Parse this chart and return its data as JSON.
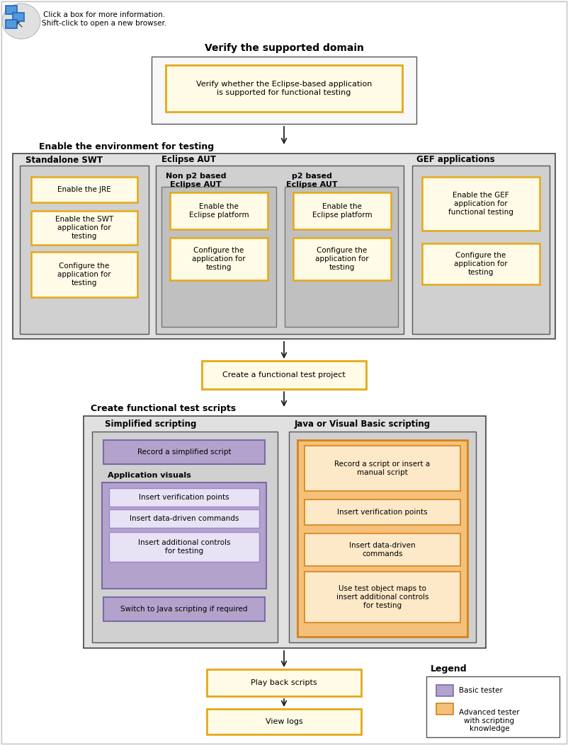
{
  "bg_color": "#f5f5f5",
  "yellow_box_bg": "#fffbe6",
  "yellow_box_border": "#e6a817",
  "purple_box_bg": "#b3a3cc",
  "purple_box_border": "#7a6aaa",
  "purple_inner_bg": "#e8e2f5",
  "orange_box_bg": "#f5c07a",
  "orange_box_border": "#d4831a",
  "orange_inner_bg": "#fde8c8",
  "gray1": "#e0e0e0",
  "gray2": "#d0d0d0",
  "gray3": "#c0c0c0",
  "white": "#ffffff",
  "section_border": "#444444",
  "sub_border": "#666666",
  "inner_border": "#888888",
  "top_note": "Click a box for more information.\nShift-click to open a new browser.",
  "section1_title": "Verify the supported domain",
  "verify_box_text": "Verify whether the Eclipse-based application\nis supported for functional testing",
  "section2_title": "Enable the environment for testing",
  "swt_title": "Standalone SWT",
  "swt_boxes": [
    "Enable the JRE",
    "Enable the SWT\napplication for\ntesting",
    "Configure the\napplication for\ntesting"
  ],
  "eclipse_aut_title": "Eclipse AUT",
  "non_p2_title": "Non p2 based\nEclipse AUT",
  "p2_title": "p2 based\nEclipse AUT",
  "eclipse_boxes_nonp2": [
    "Enable the\nEclipse platform",
    "Configure the\napplication for\ntesting"
  ],
  "eclipse_boxes_p2": [
    "Enable the\nEclipse platform",
    "Configure the\napplication for\ntesting"
  ],
  "gef_title": "GEF applications",
  "gef_boxes": [
    "Enable the GEF\napplication for\nfunctional testing",
    "Configure the\napplication for\ntesting"
  ],
  "functional_project_box": "Create a functional test project",
  "section3_title": "Create functional test scripts",
  "simplified_title": "Simplified scripting",
  "simplified_box1": "Record a simplified script",
  "app_visuals_title": "Application visuals",
  "app_visuals_boxes": [
    "Insert verification points",
    "Insert data-driven commands",
    "Insert additional controls\nfor testing"
  ],
  "simplified_box_bottom": "Switch to Java scripting if required",
  "java_title": "Java or Visual Basic scripting",
  "java_boxes": [
    "Record a script or insert a\nmanual script",
    "Insert verification points",
    "Insert data-driven\ncommands",
    "Use test object maps to\ninsert additional controls\nfor testing"
  ],
  "playback_box": "Play back scripts",
  "viewlogs_box": "View logs",
  "legend_title": "Legend",
  "legend_items": [
    "Basic tester",
    "Advanced tester\nwith scripting\nknowledge"
  ],
  "legend_colors": [
    "#b3a3cc",
    "#f5c07a"
  ]
}
